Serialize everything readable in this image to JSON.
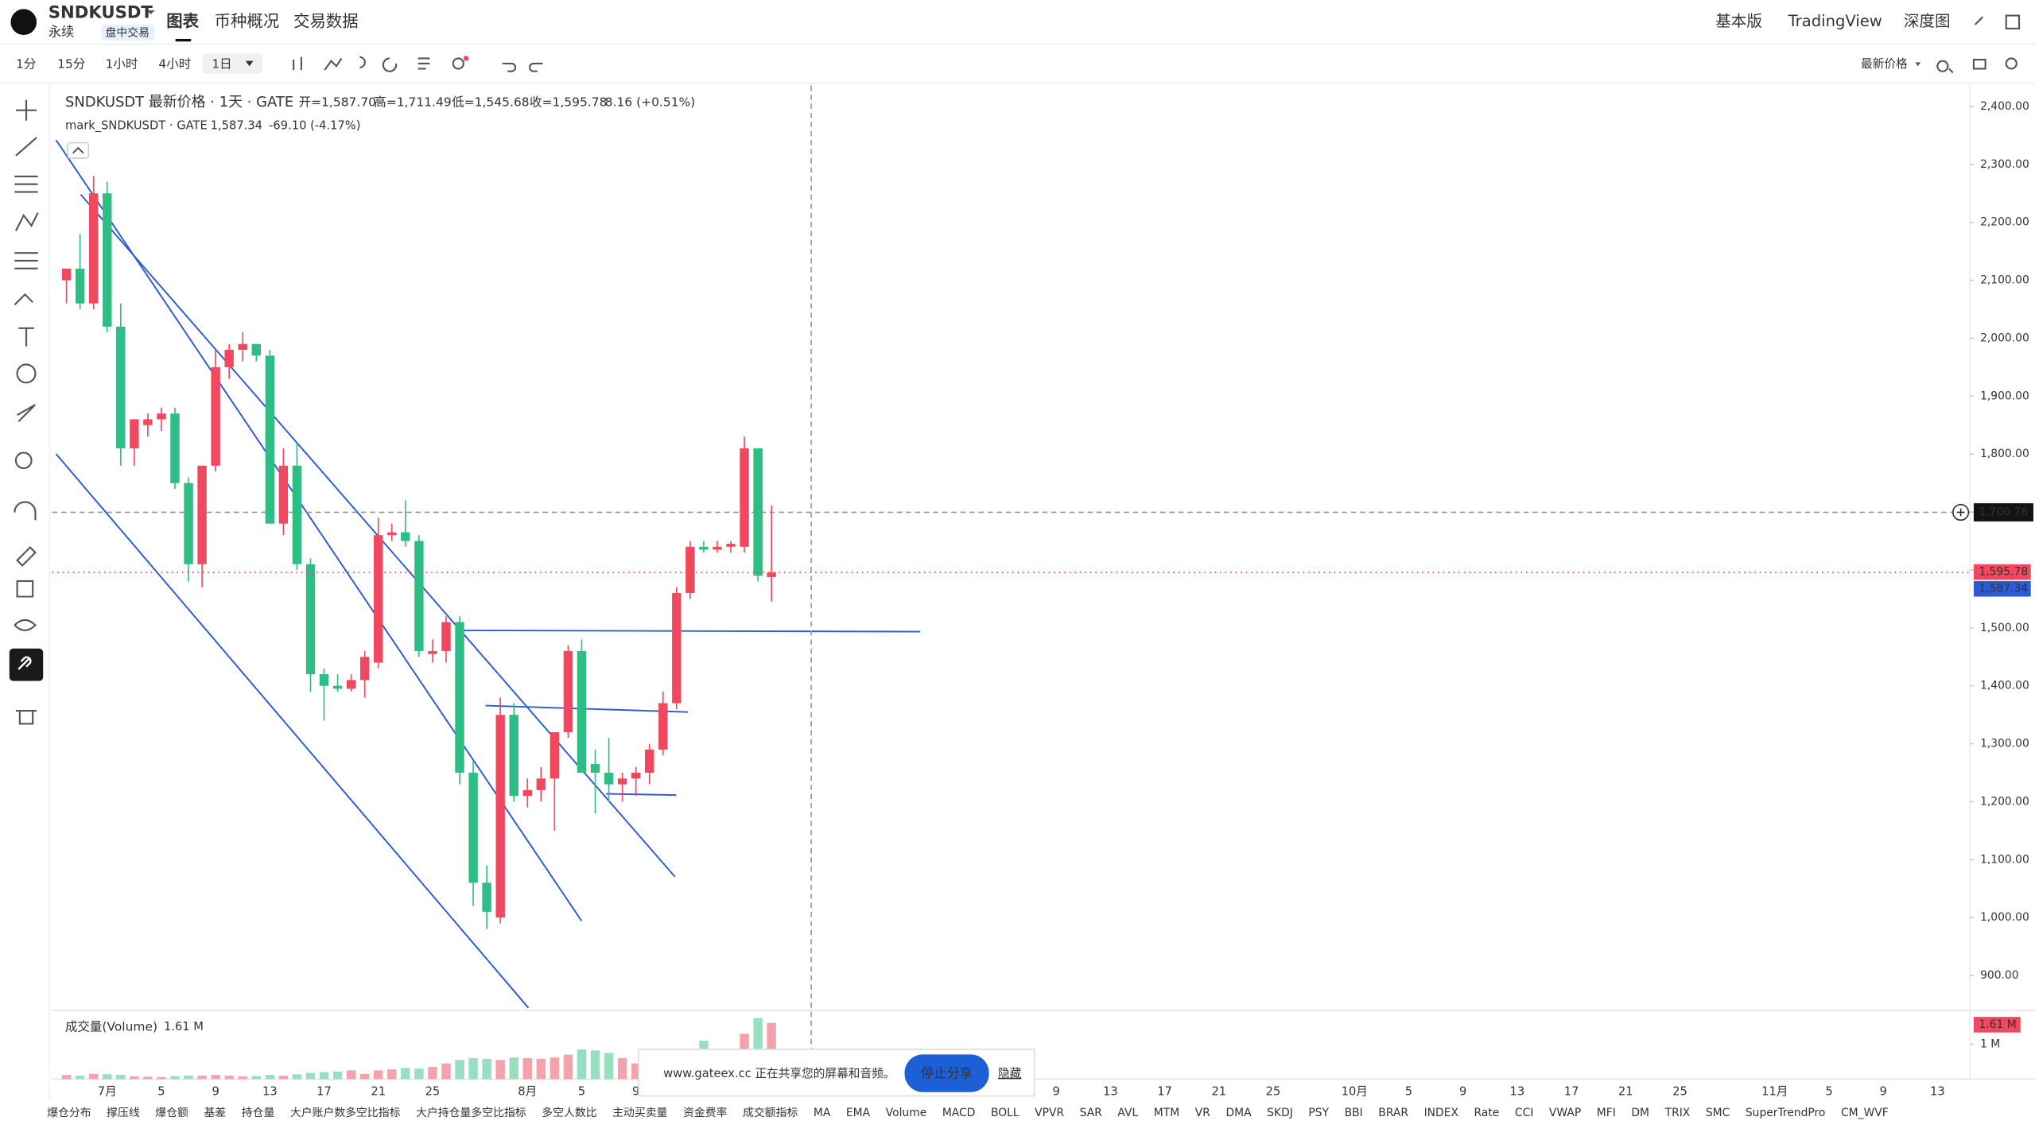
{
  "header": {
    "symbol": "SNDKUSDT",
    "type": "永续",
    "badge": "盘中交易",
    "tabs": [
      "图表",
      "币种概况",
      "交易数据"
    ],
    "right": [
      "基本版",
      "TradingView",
      "深度图"
    ]
  },
  "toolbar": {
    "intervals": [
      "1分",
      "15分",
      "1小时",
      "4小时",
      "1日"
    ],
    "price_type": "最新价格"
  },
  "legend": {
    "title": "SNDKUSDT 最新价格 · 1天 · GATE",
    "open": "开=1,587.70",
    "high": "高=1,711.49",
    "low": "低=1,545.68",
    "close": "收=1,595.78",
    "change": "8.16 (+0.51%)",
    "mark_name": "mark_SNDKUSDT · GATE",
    "mark_price": "1,587.34",
    "mark_change": "-69.10 (-4.17%)"
  },
  "price_labels": {
    "crosshair": "1,700.76",
    "last": "1,595.78",
    "mark": "1,587.34"
  },
  "chart_data": [
    {
      "type": "candlestick",
      "categories": [
        null,
        null,
        null,
        null,
        null,
        null,
        null,
        null,
        null,
        null,
        null,
        null,
        null,
        null,
        null,
        null,
        null,
        null,
        null,
        null,
        null,
        null,
        null,
        null,
        null,
        null,
        null,
        null,
        null,
        null,
        null,
        null,
        null,
        null,
        null,
        null,
        null,
        null,
        null,
        null,
        null,
        null,
        null,
        null,
        null,
        null,
        null,
        null,
        null,
        null,
        null,
        null,
        null
      ],
      "open": [
        2100,
        2120,
        2060,
        2250,
        2020,
        1810,
        1850,
        1860,
        1870,
        1750,
        1610,
        1780,
        1950,
        1980,
        1990,
        1970,
        1680,
        1780,
        1610,
        1420,
        1400,
        1395,
        1410,
        1440,
        1660,
        1665,
        1650,
        1455,
        1460,
        1510,
        1250,
        1060,
        1000,
        1350,
        1210,
        1220,
        1240,
        1320,
        1460,
        1265,
        1250,
        1230,
        1240,
        1250,
        1290,
        1370,
        1560,
        1640,
        1635,
        1640,
        1640,
        1810,
        1587.7
      ],
      "high": [
        2120,
        2180,
        2280,
        2270,
        2060,
        1860,
        1870,
        1880,
        1880,
        1760,
        1780,
        1980,
        1990,
        2010,
        1990,
        1980,
        1810,
        1820,
        1620,
        1430,
        1420,
        1420,
        1460,
        1690,
        1680,
        1720,
        1660,
        1480,
        1520,
        1520,
        1270,
        1090,
        1380,
        1370,
        1240,
        1260,
        1320,
        1470,
        1480,
        1290,
        1310,
        1250,
        1260,
        1300,
        1390,
        1570,
        1650,
        1650,
        1650,
        1650,
        1830,
        1810,
        1711.49
      ],
      "low": [
        2060,
        2050,
        2050,
        2010,
        1780,
        1780,
        1830,
        1840,
        1740,
        1580,
        1570,
        1770,
        1930,
        1960,
        1960,
        1680,
        1660,
        1600,
        1390,
        1340,
        1390,
        1390,
        1380,
        1430,
        1650,
        1640,
        1450,
        1440,
        1440,
        1230,
        1020,
        980,
        990,
        1200,
        1190,
        1200,
        1150,
        1310,
        1250,
        1180,
        1200,
        1200,
        1210,
        1230,
        1280,
        1360,
        1550,
        1630,
        1630,
        1630,
        1630,
        1580,
        1545.68
      ],
      "close": [
        2120,
        2060,
        2250,
        2020,
        1810,
        1860,
        1860,
        1870,
        1750,
        1610,
        1780,
        1950,
        1980,
        1990,
        1970,
        1680,
        1780,
        1610,
        1420,
        1400,
        1395,
        1410,
        1450,
        1660,
        1665,
        1650,
        1460,
        1460,
        1510,
        1250,
        1060,
        1010,
        1350,
        1210,
        1220,
        1240,
        1320,
        1460,
        1250,
        1250,
        1230,
        1240,
        1250,
        1290,
        1370,
        1560,
        1640,
        1635,
        1640,
        1645,
        1810,
        1590,
        1595.78
      ],
      "colors": {
        "up": "#f0485e",
        "down": "#2ebd85"
      },
      "ylim": [
        842,
        2436
      ],
      "yticks": [
        {
          "value": 900,
          "label": "900.00"
        },
        {
          "value": 1000,
          "label": "1,000.00"
        },
        {
          "value": 1100,
          "label": "1,100.00"
        },
        {
          "value": 1200,
          "label": "1,200.00"
        },
        {
          "value": 1300,
          "label": "1,300.00"
        },
        {
          "value": 1400,
          "label": "1,400.00"
        },
        {
          "value": 1500,
          "label": "1,500.00"
        },
        {
          "value": 1600,
          "label": "1,600.00"
        },
        {
          "value": 1700,
          "label": "1,700.00"
        },
        {
          "value": 1800,
          "label": "1,800.00"
        },
        {
          "value": 1900,
          "label": "1,900.00"
        },
        {
          "value": 2000,
          "label": "2,000.00"
        },
        {
          "value": 2100,
          "label": "2,100.00"
        },
        {
          "value": 2200,
          "label": "2,200.00"
        },
        {
          "value": 2300,
          "label": "2,300.00"
        },
        {
          "value": 2400,
          "label": "2,400.00"
        }
      ],
      "x_labels": [
        "7月",
        "5",
        "9",
        "13",
        "17",
        "21",
        "25",
        "8月",
        "5",
        "9",
        "9",
        "13",
        "17",
        "21",
        "25",
        "10月",
        "5",
        "9",
        "13",
        "17",
        "21",
        "25",
        "11月",
        "5",
        "9",
        "13"
      ]
    },
    {
      "type": "bar",
      "title": "成交量(Volume)",
      "values": [
        0.12,
        0.1,
        0.15,
        0.14,
        0.12,
        0.08,
        0.07,
        0.06,
        0.09,
        0.1,
        0.1,
        0.12,
        0.1,
        0.08,
        0.09,
        0.12,
        0.1,
        0.14,
        0.18,
        0.2,
        0.22,
        0.25,
        0.15,
        0.25,
        0.28,
        0.32,
        0.3,
        0.35,
        0.45,
        0.55,
        0.6,
        0.58,
        0.55,
        0.62,
        0.6,
        0.58,
        0.62,
        0.7,
        0.85,
        0.82,
        0.75,
        0.6,
        0.45,
        0.3,
        0.2,
        0.35,
        0.7,
        1.1,
        0.3,
        0.2,
        1.3,
        1.75,
        1.61
      ],
      "value_labels": [
        null,
        null,
        null,
        null,
        null,
        null,
        null,
        null,
        null,
        null,
        null,
        null,
        null,
        null,
        null,
        null,
        null,
        null,
        null,
        null,
        null,
        null,
        null,
        null,
        null,
        null,
        null,
        null,
        null,
        null,
        null,
        null,
        null,
        null,
        null,
        null,
        null,
        null,
        null,
        null,
        null,
        null,
        null,
        null,
        null,
        null,
        null,
        null,
        null,
        null,
        null,
        null,
        "1.61 M"
      ],
      "ylim": [
        0,
        1.93
      ],
      "yticks": [
        {
          "value": 1,
          "label": "1 M"
        }
      ]
    }
  ],
  "indicator_tabs": [
    "爆仓分布",
    "撑压线",
    "爆仓额",
    "基差",
    "持仓量",
    "大户账户数多空比指标",
    "大户持仓量多空比指标",
    "多空人数比",
    "主动买卖量",
    "资金费率",
    "成交额指标",
    "MA",
    "EMA",
    "Volume",
    "MACD",
    "BOLL",
    "VPVR",
    "SAR",
    "AVL",
    "MTM",
    "VR",
    "DMA",
    "SKDJ",
    "PSY",
    "BBI",
    "BRAR",
    "INDEX",
    "Rate",
    "CCI",
    "VWAP",
    "MFI",
    "DM",
    "TRIX",
    "SMC",
    "SuperTrendPro",
    "CM_WVF"
  ],
  "share_bar": {
    "message": "www.gateex.cc 正在共享您的屏幕和音频。",
    "stop": "停止分享",
    "hide": "隐藏"
  }
}
